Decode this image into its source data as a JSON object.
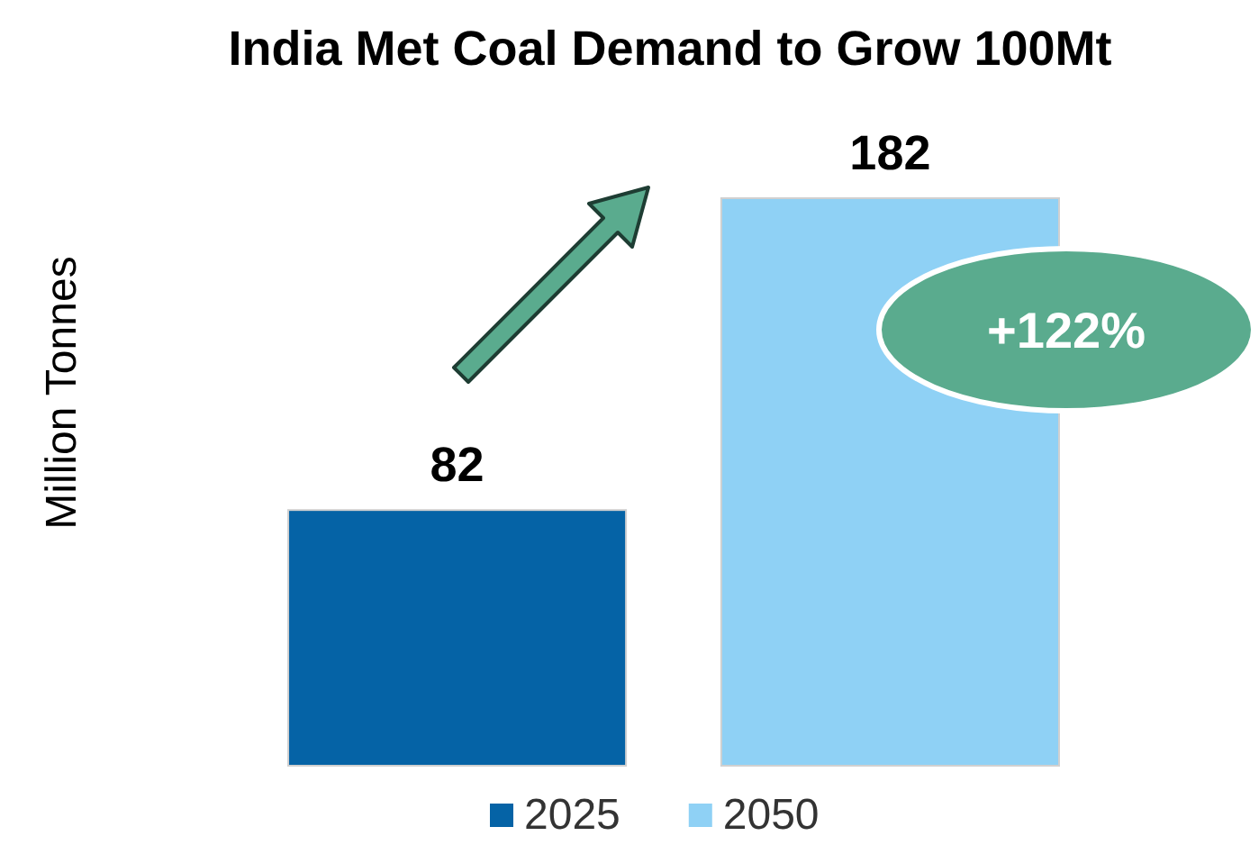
{
  "chart_data": {
    "type": "bar",
    "title": "India Met Coal Demand to Grow 100Mt",
    "ylabel": "Million Tonnes",
    "categories": [
      null
    ],
    "series": [
      {
        "name": "2025",
        "color": "#0563a6",
        "values": [
          82
        ]
      },
      {
        "name": "2050",
        "color": "#8fd1f5",
        "values": [
          182
        ]
      }
    ],
    "tick_labels": false,
    "data_labels": true,
    "legend": "bottom",
    "annotations": [
      "+122%"
    ]
  }
}
